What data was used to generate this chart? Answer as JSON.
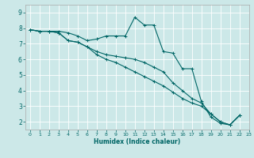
{
  "xlabel": "Humidex (Indice chaleur)",
  "bg_color": "#cce8e8",
  "grid_color": "#ffffff",
  "line_color": "#006666",
  "xlim": [
    -0.5,
    23
  ],
  "ylim": [
    1.5,
    9.5
  ],
  "xticks": [
    0,
    1,
    2,
    3,
    4,
    5,
    6,
    7,
    8,
    9,
    10,
    11,
    12,
    13,
    14,
    15,
    16,
    17,
    18,
    19,
    20,
    21,
    22,
    23
  ],
  "yticks": [
    2,
    3,
    4,
    5,
    6,
    7,
    8,
    9
  ],
  "line1_x": [
    0,
    1,
    2,
    3,
    4,
    5,
    6,
    7,
    8,
    9,
    10,
    11,
    12,
    13,
    14,
    15,
    16,
    17,
    18,
    19,
    20,
    21,
    22
  ],
  "line1_y": [
    7.9,
    7.8,
    7.8,
    7.8,
    7.7,
    7.5,
    7.2,
    7.3,
    7.5,
    7.5,
    7.5,
    8.7,
    8.2,
    8.2,
    6.5,
    6.4,
    5.4,
    5.4,
    3.3,
    2.3,
    1.9,
    1.8,
    2.4
  ],
  "line2_x": [
    0,
    1,
    2,
    3,
    4,
    5,
    6,
    7,
    8,
    9,
    10,
    11,
    12,
    13,
    14,
    15,
    16,
    17,
    18,
    19,
    20,
    21,
    22
  ],
  "line2_y": [
    7.9,
    7.8,
    7.8,
    7.7,
    7.2,
    7.1,
    6.8,
    6.5,
    6.3,
    6.2,
    6.1,
    6.0,
    5.8,
    5.5,
    5.2,
    4.5,
    4.0,
    3.5,
    3.2,
    2.5,
    2.0,
    1.8,
    2.4
  ],
  "line3_x": [
    0,
    1,
    2,
    3,
    4,
    5,
    6,
    7,
    8,
    9,
    10,
    11,
    12,
    13,
    14,
    15,
    16,
    17,
    18,
    19,
    20,
    21,
    22
  ],
  "line3_y": [
    7.9,
    7.8,
    7.8,
    7.7,
    7.2,
    7.1,
    6.8,
    6.3,
    6.0,
    5.8,
    5.5,
    5.2,
    4.9,
    4.6,
    4.3,
    3.9,
    3.5,
    3.2,
    3.0,
    2.5,
    2.0,
    1.8,
    2.4
  ],
  "marker": "+",
  "linewidth": 0.8,
  "markersize": 3.0,
  "xlabel_fontsize": 5.5,
  "tick_fontsize_x": 4.5,
  "tick_fontsize_y": 5.5
}
